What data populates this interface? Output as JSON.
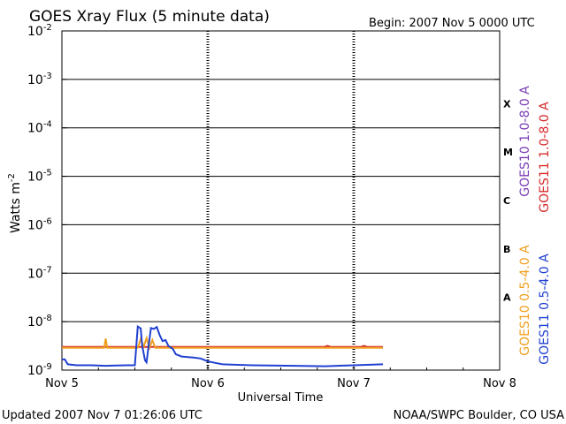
{
  "chart_data": {
    "type": "line",
    "title": "GOES Xray Flux (5 minute data)",
    "begin_label": "Begin:  2007 Nov 5 0000 UTC",
    "ylabel": "Watts m",
    "ylabel_sup": "-2",
    "xlabel": "Universal Time",
    "y_scale": "log",
    "ylim_exp": [
      -9,
      -2
    ],
    "y_ticks": [
      {
        "base": "10",
        "exp": "-2",
        "value": -2
      },
      {
        "base": "10",
        "exp": "-3",
        "value": -3
      },
      {
        "base": "10",
        "exp": "-4",
        "value": -4
      },
      {
        "base": "10",
        "exp": "-5",
        "value": -5
      },
      {
        "base": "10",
        "exp": "-6",
        "value": -6
      },
      {
        "base": "10",
        "exp": "-7",
        "value": -7
      },
      {
        "base": "10",
        "exp": "-8",
        "value": -8
      },
      {
        "base": "10",
        "exp": "-9",
        "value": -9
      }
    ],
    "x_range_days": [
      0,
      3
    ],
    "x_ticks": [
      {
        "label": "Nov 5",
        "day": 0
      },
      {
        "label": "Nov 6",
        "day": 1
      },
      {
        "label": "Nov 7",
        "day": 2
      },
      {
        "label": "Nov 8",
        "day": 3
      }
    ],
    "flare_classes": [
      {
        "label": "X",
        "value": -3.5
      },
      {
        "label": "M",
        "value": -4.5
      },
      {
        "label": "C",
        "value": -5.5
      },
      {
        "label": "B",
        "value": -6.5
      },
      {
        "label": "A",
        "value": -7.5
      }
    ],
    "series": [
      {
        "name": "GOES10 1.0-8.0 A",
        "color": "#7b3fb5",
        "points": []
      },
      {
        "name": "GOES11 1.0-8.0 A",
        "color": "#d42a2a",
        "points": [
          [
            0,
            -8.52
          ],
          [
            1.8,
            -8.52
          ],
          [
            1.82,
            -8.5
          ],
          [
            1.84,
            -8.52
          ],
          [
            2.05,
            -8.52
          ],
          [
            2.07,
            -8.5
          ],
          [
            2.09,
            -8.52
          ],
          [
            2.2,
            -8.52
          ]
        ]
      },
      {
        "name": "GOES10 0.5-4.0 A",
        "color": "#f0a020",
        "points": [
          [
            0,
            -8.54
          ],
          [
            0.29,
            -8.54
          ],
          [
            0.3,
            -8.35
          ],
          [
            0.31,
            -8.54
          ],
          [
            0.52,
            -8.54
          ],
          [
            0.54,
            -8.36
          ],
          [
            0.56,
            -8.52
          ],
          [
            0.58,
            -8.34
          ],
          [
            0.6,
            -8.54
          ],
          [
            0.62,
            -8.38
          ],
          [
            0.64,
            -8.54
          ],
          [
            1.2,
            -8.54
          ],
          [
            2.2,
            -8.54
          ]
        ]
      },
      {
        "name": "GOES11 0.5-4.0 A",
        "color": "#2040d0",
        "points": [
          [
            0,
            -8.78
          ],
          [
            0.02,
            -8.78
          ],
          [
            0.04,
            -8.88
          ],
          [
            0.1,
            -8.9
          ],
          [
            0.2,
            -8.9
          ],
          [
            0.3,
            -8.91
          ],
          [
            0.45,
            -8.9
          ],
          [
            0.5,
            -8.9
          ],
          [
            0.52,
            -8.1
          ],
          [
            0.54,
            -8.14
          ],
          [
            0.55,
            -8.5
          ],
          [
            0.57,
            -8.8
          ],
          [
            0.58,
            -8.84
          ],
          [
            0.59,
            -8.6
          ],
          [
            0.61,
            -8.13
          ],
          [
            0.63,
            -8.15
          ],
          [
            0.65,
            -8.11
          ],
          [
            0.67,
            -8.28
          ],
          [
            0.69,
            -8.4
          ],
          [
            0.71,
            -8.38
          ],
          [
            0.73,
            -8.5
          ],
          [
            0.76,
            -8.56
          ],
          [
            0.78,
            -8.67
          ],
          [
            0.82,
            -8.72
          ],
          [
            0.9,
            -8.74
          ],
          [
            0.95,
            -8.76
          ],
          [
            1.0,
            -8.82
          ],
          [
            1.05,
            -8.85
          ],
          [
            1.1,
            -8.88
          ],
          [
            1.3,
            -8.9
          ],
          [
            1.6,
            -8.91
          ],
          [
            1.8,
            -8.92
          ],
          [
            2.0,
            -8.9
          ],
          [
            2.2,
            -8.88
          ]
        ]
      }
    ],
    "footer_left": "Updated 2007 Nov  7 01:26:06 UTC",
    "footer_right": "NOAA/SWPC Boulder, CO USA"
  }
}
